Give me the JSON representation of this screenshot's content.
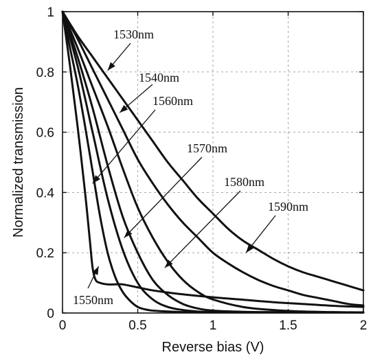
{
  "chart_data": {
    "type": "line",
    "xlabel": "Reverse bias (V)",
    "ylabel": "Normalized transmission",
    "xlim": [
      0,
      2
    ],
    "ylim": [
      0,
      1
    ],
    "xticks": [
      0,
      0.5,
      1,
      1.5,
      2
    ],
    "xtick_labels": [
      "0",
      "0.5",
      "1",
      "1.5",
      "2"
    ],
    "yticks": [
      0,
      0.2,
      0.4,
      0.6,
      0.8,
      1
    ],
    "ytick_labels": [
      "0",
      "0.2",
      "0.4",
      "0.6",
      "0.8",
      "1"
    ],
    "grid": true,
    "legend": "none (inline annotations with arrows)",
    "line_color": "#111111",
    "series": [
      {
        "name": "1530nm",
        "x": [
          0,
          0.1,
          0.2,
          0.3,
          0.4,
          0.5,
          0.6,
          0.7,
          0.8,
          0.9,
          1.0,
          1.1,
          1.2,
          1.3,
          1.4,
          1.5,
          1.6,
          1.7,
          1.8,
          1.9,
          2.0
        ],
        "y": [
          1.0,
          0.92,
          0.85,
          0.78,
          0.71,
          0.64,
          0.57,
          0.5,
          0.44,
          0.38,
          0.33,
          0.28,
          0.24,
          0.21,
          0.18,
          0.155,
          0.135,
          0.12,
          0.105,
          0.09,
          0.075
        ]
      },
      {
        "name": "1540nm",
        "x": [
          0,
          0.1,
          0.2,
          0.3,
          0.4,
          0.5,
          0.6,
          0.7,
          0.8,
          0.9,
          1.0,
          1.1,
          1.2,
          1.3,
          1.4,
          1.5,
          1.6,
          1.7,
          1.8,
          1.9,
          2.0
        ],
        "y": [
          1.0,
          0.91,
          0.81,
          0.71,
          0.61,
          0.51,
          0.43,
          0.36,
          0.3,
          0.25,
          0.2,
          0.165,
          0.135,
          0.11,
          0.09,
          0.075,
          0.06,
          0.05,
          0.04,
          0.03,
          0.025
        ]
      },
      {
        "name": "1560nm",
        "x": [
          0,
          0.1,
          0.2,
          0.3,
          0.4,
          0.5,
          0.6,
          0.7,
          0.8,
          0.9,
          1.0,
          1.2,
          1.4,
          1.6,
          1.8,
          2.0
        ],
        "y": [
          1.0,
          0.88,
          0.75,
          0.62,
          0.48,
          0.35,
          0.25,
          0.17,
          0.11,
          0.07,
          0.045,
          0.02,
          0.01,
          0.005,
          0.003,
          0.002
        ]
      },
      {
        "name": "1570nm",
        "x": [
          0,
          0.1,
          0.2,
          0.3,
          0.4,
          0.5,
          0.6,
          0.7,
          0.8,
          0.9,
          1.0,
          1.2,
          1.4,
          1.6,
          1.8,
          2.0
        ],
        "y": [
          1.0,
          0.85,
          0.68,
          0.49,
          0.32,
          0.2,
          0.11,
          0.06,
          0.03,
          0.015,
          0.008,
          0.004,
          0.003,
          0.002,
          0.002,
          0.002
        ]
      },
      {
        "name": "1580nm",
        "x": [
          0,
          0.1,
          0.2,
          0.3,
          0.4,
          0.5,
          0.6,
          0.7,
          0.8,
          0.9,
          1.0,
          1.2,
          1.4,
          1.6,
          1.8,
          2.0
        ],
        "y": [
          1.0,
          0.82,
          0.6,
          0.38,
          0.21,
          0.1,
          0.045,
          0.02,
          0.01,
          0.005,
          0.003,
          0.002,
          0.002,
          0.002,
          0.002,
          0.002
        ]
      },
      {
        "name": "1590nm",
        "x": [
          0,
          0.05,
          0.1,
          0.15,
          0.2,
          0.25,
          0.3,
          0.35,
          0.4,
          0.45,
          0.5,
          0.55,
          0.6,
          0.7,
          0.8,
          0.9,
          1.0,
          1.2,
          1.4,
          1.6,
          1.8,
          2.0
        ],
        "y": [
          1.0,
          0.88,
          0.76,
          0.62,
          0.47,
          0.32,
          0.2,
          0.12,
          0.07,
          0.04,
          0.02,
          0.012,
          0.008,
          0.005,
          0.003,
          0.002,
          0.002,
          0.002,
          0.002,
          0.002,
          0.002,
          0.002
        ]
      },
      {
        "name": "1550nm",
        "x": [
          0,
          0.05,
          0.1,
          0.15,
          0.18,
          0.2,
          0.22,
          0.25,
          0.3,
          0.35,
          0.4,
          0.5,
          0.6,
          0.7,
          0.8,
          1.0,
          1.2,
          1.4,
          1.6,
          1.8,
          2.0
        ],
        "y": [
          1.0,
          0.82,
          0.62,
          0.4,
          0.25,
          0.15,
          0.11,
          0.1,
          0.095,
          0.095,
          0.095,
          0.085,
          0.075,
          0.068,
          0.062,
          0.052,
          0.044,
          0.036,
          0.03,
          0.024,
          0.02
        ]
      }
    ],
    "annotations": [
      {
        "text": "1530nm",
        "x": 0.3,
        "y": 0.805
      },
      {
        "text": "1540nm",
        "x": 0.38,
        "y": 0.665
      },
      {
        "text": "1560nm",
        "x": 0.2,
        "y": 0.43
      },
      {
        "text": "1570nm",
        "x": 0.41,
        "y": 0.25
      },
      {
        "text": "1580nm",
        "x": 0.68,
        "y": 0.15
      },
      {
        "text": "1590nm",
        "x": 1.22,
        "y": 0.2
      },
      {
        "text": "1550nm",
        "x": 0.24,
        "y": 0.155
      }
    ]
  }
}
